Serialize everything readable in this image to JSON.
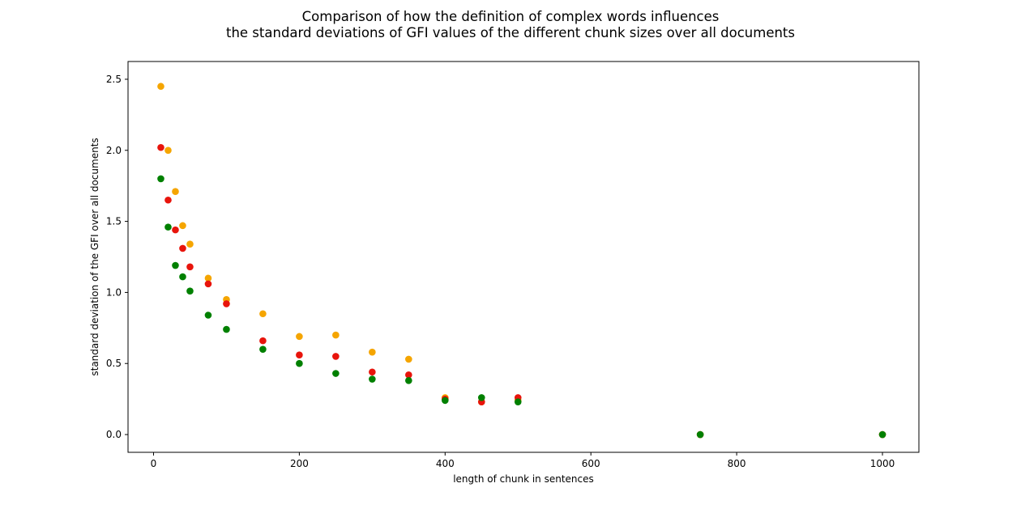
{
  "chart_data": {
    "type": "scatter",
    "title": [
      "Comparison of how the definition of complex words influences",
      "the standard deviations of GFI values of the different chunk sizes over all documents"
    ],
    "xlabel": "length of chunk in sentences",
    "ylabel": "standard deviation of the GFI over all documents",
    "xlim": [
      -35,
      1050
    ],
    "ylim": [
      -0.125,
      2.625
    ],
    "x_ticks": [
      0,
      200,
      400,
      600,
      800,
      1000
    ],
    "y_ticks": [
      0.0,
      0.5,
      1.0,
      1.5,
      2.0,
      2.5
    ],
    "x_tick_labels": [
      "0",
      "200",
      "400",
      "600",
      "800",
      "1000"
    ],
    "y_tick_labels": [
      "0.0",
      "0.5",
      "1.0",
      "1.5",
      "2.0",
      "2.5"
    ],
    "grid": false,
    "legend": null,
    "series": [
      {
        "color": "#f5a500",
        "x": [
          10,
          20,
          30,
          40,
          50,
          75,
          100,
          150,
          200,
          250,
          300,
          350,
          400,
          450,
          500,
          750,
          1000
        ],
        "y": [
          2.45,
          2.0,
          1.71,
          1.47,
          1.34,
          1.1,
          0.95,
          0.85,
          0.69,
          0.7,
          0.58,
          0.53,
          0.26,
          0.23,
          0.24,
          0.0,
          0.0
        ]
      },
      {
        "color": "#e8140c",
        "x": [
          10,
          20,
          30,
          40,
          50,
          75,
          100,
          150,
          200,
          250,
          300,
          350,
          400,
          450,
          500,
          750,
          1000
        ],
        "y": [
          2.02,
          1.65,
          1.44,
          1.31,
          1.18,
          1.06,
          0.92,
          0.66,
          0.56,
          0.55,
          0.44,
          0.42,
          0.25,
          0.23,
          0.26,
          0.0,
          0.0
        ]
      },
      {
        "color": "#008000",
        "x": [
          10,
          20,
          30,
          40,
          50,
          75,
          100,
          150,
          200,
          250,
          300,
          350,
          400,
          450,
          500,
          750,
          1000
        ],
        "y": [
          1.8,
          1.46,
          1.19,
          1.11,
          1.01,
          0.84,
          0.74,
          0.6,
          0.5,
          0.43,
          0.39,
          0.38,
          0.24,
          0.26,
          0.23,
          0.0,
          0.0
        ]
      }
    ]
  }
}
